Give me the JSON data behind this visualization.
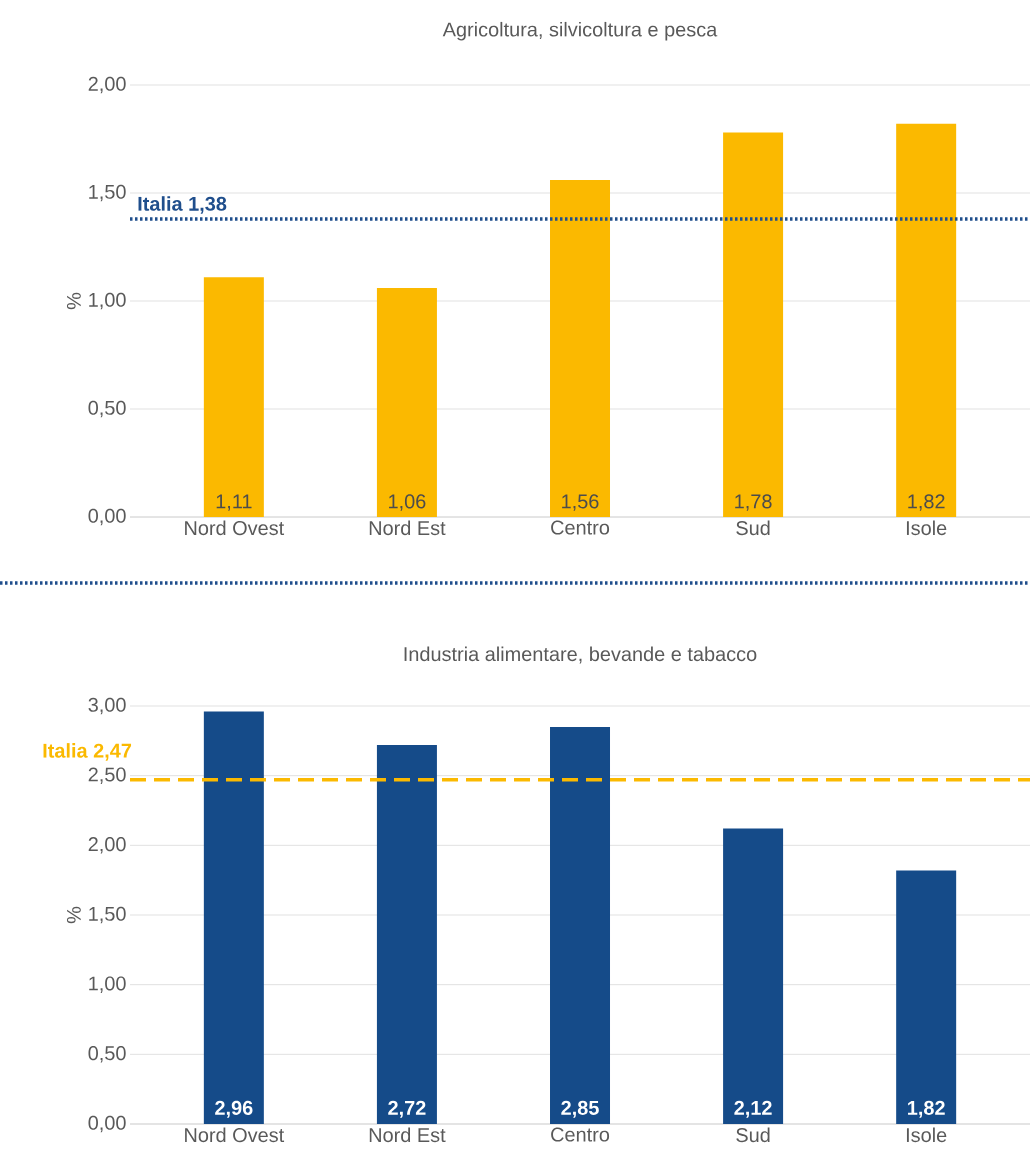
{
  "chart_data": [
    {
      "type": "bar",
      "title": "Agricoltura, silvicoltura e pesca",
      "ylabel": "%",
      "categories": [
        "Nord Ovest",
        "Nord Est",
        "Centro",
        "Sud",
        "Isole"
      ],
      "values": [
        1.11,
        1.06,
        1.56,
        1.78,
        1.82
      ],
      "value_labels": [
        "1,11",
        "1,06",
        "1,56",
        "1,78",
        "1,82"
      ],
      "color": "#FBB900",
      "ylim": [
        0,
        2
      ],
      "yticks": [
        {
          "value": 0,
          "label": "0,00"
        },
        {
          "value": 0.5,
          "label": "0,50"
        },
        {
          "value": 1,
          "label": "1,00"
        },
        {
          "value": 1.5,
          "label": "1,50"
        },
        {
          "value": 2,
          "label": "2,00"
        }
      ],
      "grid": "y",
      "ref_lines": [
        {
          "axis": "y",
          "value": 1.38,
          "label": "Italia 1,38",
          "color": "#1F4E8C",
          "line_style": "dotted"
        }
      ]
    },
    {
      "type": "bar",
      "title": "Industria alimentare, bevande e tabacco",
      "ylabel": "%",
      "categories": [
        "Nord Ovest",
        "Nord Est",
        "Centro",
        "Sud",
        "Isole"
      ],
      "values": [
        2.96,
        2.72,
        2.85,
        2.12,
        1.82
      ],
      "value_labels": [
        "2,96",
        "2,72",
        "2,85",
        "2,12",
        "1,82"
      ],
      "color": "#154B89",
      "ylim": [
        0,
        3
      ],
      "yticks": [
        {
          "value": 0,
          "label": "0,00"
        },
        {
          "value": 0.5,
          "label": "0,50"
        },
        {
          "value": 1,
          "label": "1,00"
        },
        {
          "value": 1.5,
          "label": "1,50"
        },
        {
          "value": 2,
          "label": "2,00"
        },
        {
          "value": 2.5,
          "label": "2,50"
        },
        {
          "value": 3,
          "label": "3,00"
        }
      ],
      "grid": "y",
      "ref_lines": [
        {
          "axis": "y",
          "value": 2.47,
          "label": "Italia 2,47",
          "color": "#FBB900",
          "line_style": "dashed"
        }
      ]
    }
  ]
}
